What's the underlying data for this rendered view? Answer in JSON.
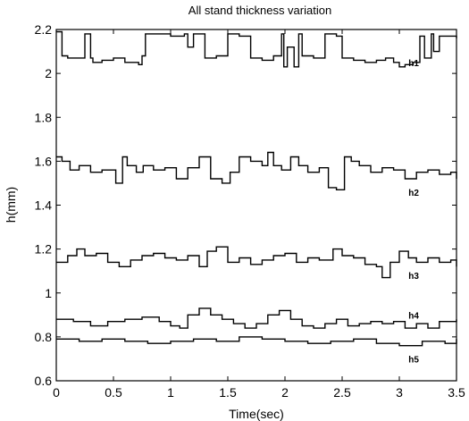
{
  "chart_data": {
    "type": "line",
    "title": "All stand thickness variation",
    "xlabel": "Time(sec)",
    "ylabel": "h(mm)",
    "xlim": [
      0,
      3.5
    ],
    "ylim": [
      0.6,
      2.2
    ],
    "xticks": [
      0,
      0.5,
      1,
      1.5,
      2,
      2.5,
      3,
      3.5
    ],
    "yticks": [
      0.6,
      0.8,
      1,
      1.2,
      1.4,
      1.6,
      1.8,
      2,
      2.2
    ],
    "xtick_labels": [
      "0",
      "0.5",
      "1",
      "1.5",
      "2",
      "2.5",
      "3",
      "3.5"
    ],
    "ytick_labels": [
      "0.6",
      "0.8",
      "1",
      "1.2",
      "1.4",
      "1.6",
      "1.8",
      "2",
      "2.2"
    ],
    "grid": false,
    "legend": "none",
    "line_style": "step",
    "series": [
      {
        "name": "h1",
        "label_at": [
          3.08,
          2.05
        ],
        "x": [
          0,
          0.05,
          0.1,
          0.25,
          0.3,
          0.32,
          0.4,
          0.5,
          0.6,
          0.72,
          0.75,
          0.78,
          1.0,
          1.12,
          1.15,
          1.2,
          1.3,
          1.4,
          1.5,
          1.6,
          1.7,
          1.8,
          1.9,
          1.97,
          1.99,
          2.02,
          2.08,
          2.12,
          2.15,
          2.25,
          2.35,
          2.45,
          2.5,
          2.6,
          2.7,
          2.8,
          2.88,
          2.95,
          3.0,
          3.05,
          3.12,
          3.18,
          3.22,
          3.28,
          3.3,
          3.35,
          3.5
        ],
        "y": [
          2.19,
          2.08,
          2.07,
          2.18,
          2.07,
          2.05,
          2.06,
          2.07,
          2.05,
          2.04,
          2.08,
          2.18,
          2.17,
          2.18,
          2.12,
          2.18,
          2.07,
          2.08,
          2.18,
          2.17,
          2.07,
          2.06,
          2.08,
          2.18,
          2.03,
          2.12,
          2.03,
          2.18,
          2.08,
          2.07,
          2.18,
          2.17,
          2.07,
          2.06,
          2.05,
          2.06,
          2.07,
          2.05,
          2.03,
          2.04,
          2.05,
          2.17,
          2.07,
          2.18,
          2.1,
          2.17,
          2.16
        ]
      },
      {
        "name": "h2",
        "label_at": [
          3.08,
          1.46
        ],
        "x": [
          0,
          0.05,
          0.12,
          0.2,
          0.3,
          0.4,
          0.52,
          0.58,
          0.62,
          0.7,
          0.76,
          0.85,
          0.95,
          1.05,
          1.15,
          1.25,
          1.35,
          1.45,
          1.52,
          1.6,
          1.7,
          1.8,
          1.85,
          1.9,
          1.97,
          2.05,
          2.12,
          2.2,
          2.3,
          2.38,
          2.45,
          2.52,
          2.58,
          2.65,
          2.75,
          2.85,
          2.95,
          3.05,
          3.15,
          3.25,
          3.35,
          3.45,
          3.5
        ],
        "y": [
          1.62,
          1.6,
          1.56,
          1.58,
          1.55,
          1.56,
          1.5,
          1.62,
          1.58,
          1.55,
          1.58,
          1.56,
          1.57,
          1.52,
          1.57,
          1.62,
          1.52,
          1.5,
          1.55,
          1.62,
          1.6,
          1.58,
          1.64,
          1.58,
          1.56,
          1.62,
          1.58,
          1.55,
          1.57,
          1.48,
          1.47,
          1.62,
          1.6,
          1.58,
          1.55,
          1.57,
          1.56,
          1.52,
          1.55,
          1.56,
          1.54,
          1.55,
          1.52
        ]
      },
      {
        "name": "h3",
        "label_at": [
          3.08,
          1.08
        ],
        "x": [
          0,
          0.1,
          0.18,
          0.25,
          0.35,
          0.45,
          0.55,
          0.65,
          0.75,
          0.85,
          0.95,
          1.05,
          1.15,
          1.25,
          1.32,
          1.4,
          1.5,
          1.6,
          1.7,
          1.8,
          1.9,
          2.0,
          2.1,
          2.2,
          2.3,
          2.42,
          2.5,
          2.6,
          2.7,
          2.8,
          2.85,
          2.92,
          3.0,
          3.08,
          3.15,
          3.25,
          3.35,
          3.45,
          3.5
        ],
        "y": [
          1.14,
          1.17,
          1.2,
          1.17,
          1.18,
          1.14,
          1.12,
          1.15,
          1.17,
          1.18,
          1.16,
          1.15,
          1.17,
          1.12,
          1.19,
          1.21,
          1.14,
          1.16,
          1.13,
          1.15,
          1.17,
          1.18,
          1.14,
          1.16,
          1.15,
          1.2,
          1.17,
          1.16,
          1.13,
          1.12,
          1.07,
          1.14,
          1.19,
          1.16,
          1.14,
          1.16,
          1.14,
          1.15,
          1.12
        ]
      },
      {
        "name": "h4",
        "label_at": [
          3.08,
          0.9
        ],
        "x": [
          0,
          0.15,
          0.3,
          0.45,
          0.6,
          0.75,
          0.9,
          1.0,
          1.08,
          1.15,
          1.25,
          1.35,
          1.45,
          1.55,
          1.65,
          1.75,
          1.85,
          1.95,
          2.05,
          2.15,
          2.25,
          2.35,
          2.45,
          2.55,
          2.65,
          2.75,
          2.85,
          2.95,
          3.05,
          3.15,
          3.25,
          3.35,
          3.5
        ],
        "y": [
          0.88,
          0.87,
          0.85,
          0.87,
          0.88,
          0.89,
          0.87,
          0.85,
          0.84,
          0.9,
          0.93,
          0.9,
          0.88,
          0.86,
          0.84,
          0.86,
          0.9,
          0.92,
          0.88,
          0.85,
          0.84,
          0.86,
          0.88,
          0.85,
          0.86,
          0.87,
          0.86,
          0.87,
          0.84,
          0.86,
          0.84,
          0.87,
          0.88
        ]
      },
      {
        "name": "h5",
        "label_at": [
          3.08,
          0.7
        ],
        "x": [
          0,
          0.2,
          0.4,
          0.6,
          0.8,
          1.0,
          1.2,
          1.4,
          1.6,
          1.8,
          2.0,
          2.2,
          2.4,
          2.6,
          2.8,
          3.0,
          3.2,
          3.4,
          3.5
        ],
        "y": [
          0.79,
          0.78,
          0.79,
          0.78,
          0.77,
          0.78,
          0.79,
          0.78,
          0.8,
          0.79,
          0.78,
          0.77,
          0.78,
          0.79,
          0.77,
          0.76,
          0.78,
          0.77,
          0.79
        ]
      }
    ]
  }
}
